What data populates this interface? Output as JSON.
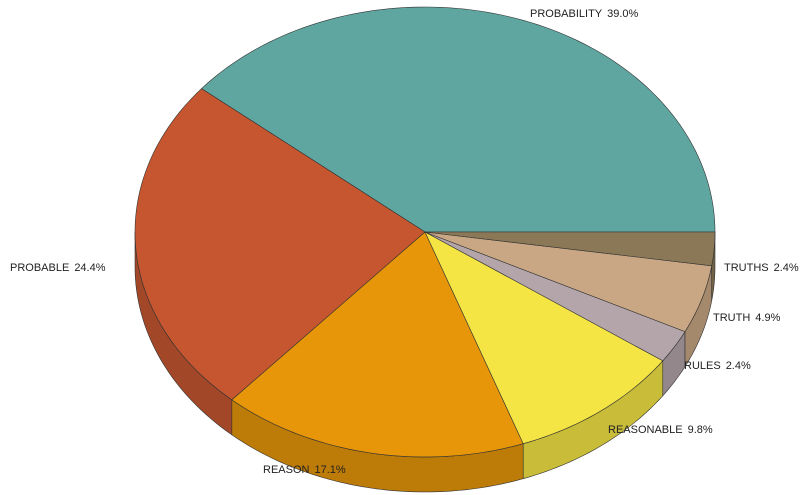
{
  "chart_data": {
    "type": "pie",
    "categories": [
      "PROBABILITY",
      "PROBABLE",
      "REASON",
      "REASONABLE",
      "RULES",
      "TRUTH",
      "TRUTHS"
    ],
    "values": [
      39.0,
      24.4,
      17.1,
      9.8,
      2.4,
      4.9,
      2.4
    ],
    "value_labels": [
      "39.0%",
      "24.4%",
      "17.1%",
      "9.8%",
      "2.4%",
      "4.9%",
      "2.4%"
    ],
    "colors": [
      "#5fa6a0",
      "#c5562f",
      "#e69608",
      "#f4e545",
      "#b3a5a9",
      "#c9a784",
      "#8b7857"
    ]
  }
}
